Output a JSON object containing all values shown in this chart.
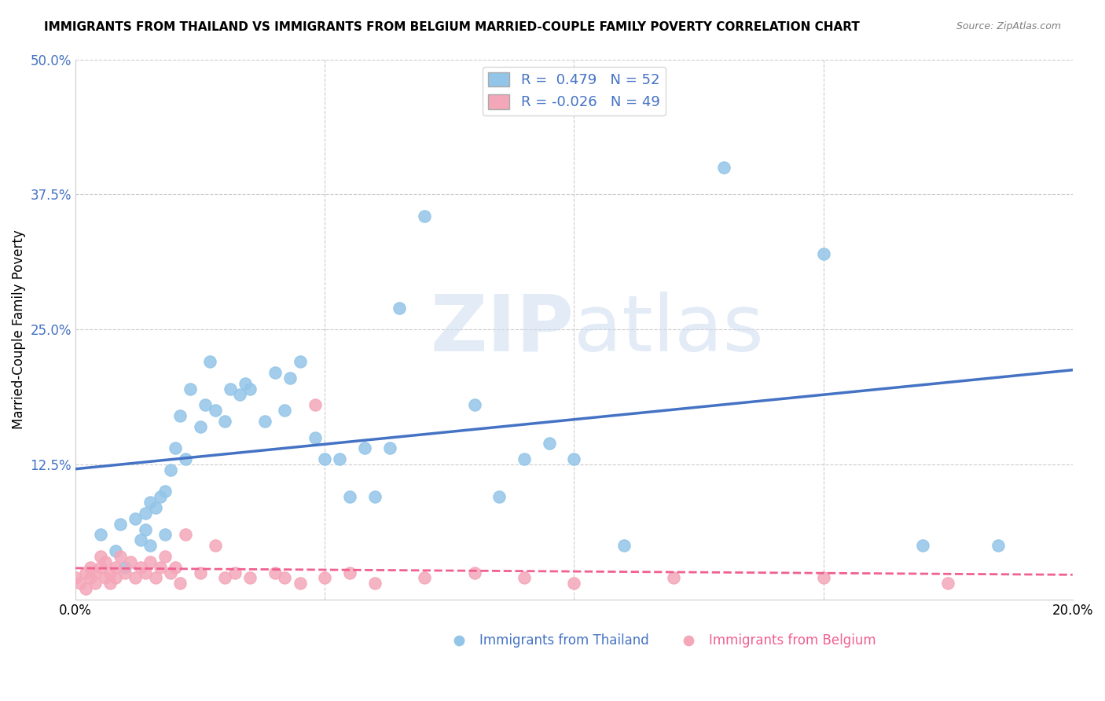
{
  "title": "IMMIGRANTS FROM THAILAND VS IMMIGRANTS FROM BELGIUM MARRIED-COUPLE FAMILY POVERTY CORRELATION CHART",
  "source": "Source: ZipAtlas.com",
  "xlabel": "",
  "ylabel": "Married-Couple Family Poverty",
  "xlim": [
    0.0,
    0.2
  ],
  "ylim": [
    0.0,
    0.5
  ],
  "xticks": [
    0.0,
    0.05,
    0.1,
    0.15,
    0.2
  ],
  "yticks": [
    0.0,
    0.125,
    0.25,
    0.375,
    0.5
  ],
  "thailand_R": 0.479,
  "thailand_N": 52,
  "belgium_R": -0.026,
  "belgium_N": 49,
  "thailand_color": "#93c5e8",
  "belgium_color": "#f4a7b9",
  "thailand_line_color": "#4472c4",
  "belgium_line_color": "#f06090",
  "legend_text_color": "#4472c4",
  "watermark_zip": "ZIP",
  "watermark_atlas": "atlas",
  "background_color": "#ffffff",
  "grid_color": "#cccccc",
  "thailand_x": [
    0.005,
    0.008,
    0.009,
    0.01,
    0.012,
    0.013,
    0.014,
    0.014,
    0.015,
    0.015,
    0.016,
    0.017,
    0.018,
    0.018,
    0.019,
    0.02,
    0.021,
    0.022,
    0.023,
    0.025,
    0.026,
    0.027,
    0.028,
    0.03,
    0.031,
    0.033,
    0.034,
    0.035,
    0.038,
    0.04,
    0.042,
    0.043,
    0.045,
    0.048,
    0.05,
    0.053,
    0.055,
    0.058,
    0.06,
    0.063,
    0.065,
    0.07,
    0.08,
    0.085,
    0.09,
    0.095,
    0.1,
    0.11,
    0.13,
    0.15,
    0.17,
    0.185
  ],
  "thailand_y": [
    0.06,
    0.045,
    0.07,
    0.03,
    0.075,
    0.055,
    0.08,
    0.065,
    0.09,
    0.05,
    0.085,
    0.095,
    0.1,
    0.06,
    0.12,
    0.14,
    0.17,
    0.13,
    0.195,
    0.16,
    0.18,
    0.22,
    0.175,
    0.165,
    0.195,
    0.19,
    0.2,
    0.195,
    0.165,
    0.21,
    0.175,
    0.205,
    0.22,
    0.15,
    0.13,
    0.13,
    0.095,
    0.14,
    0.095,
    0.14,
    0.27,
    0.355,
    0.18,
    0.095,
    0.13,
    0.145,
    0.13,
    0.05,
    0.4,
    0.32,
    0.05,
    0.05
  ],
  "belgium_x": [
    0.0,
    0.001,
    0.002,
    0.002,
    0.003,
    0.003,
    0.004,
    0.004,
    0.005,
    0.005,
    0.006,
    0.006,
    0.007,
    0.007,
    0.008,
    0.008,
    0.009,
    0.01,
    0.011,
    0.012,
    0.013,
    0.014,
    0.015,
    0.016,
    0.017,
    0.018,
    0.019,
    0.02,
    0.021,
    0.022,
    0.025,
    0.028,
    0.03,
    0.032,
    0.035,
    0.04,
    0.042,
    0.045,
    0.048,
    0.05,
    0.055,
    0.06,
    0.07,
    0.08,
    0.09,
    0.1,
    0.12,
    0.15,
    0.175
  ],
  "belgium_y": [
    0.02,
    0.015,
    0.025,
    0.01,
    0.03,
    0.02,
    0.025,
    0.015,
    0.03,
    0.04,
    0.02,
    0.035,
    0.025,
    0.015,
    0.03,
    0.02,
    0.04,
    0.025,
    0.035,
    0.02,
    0.03,
    0.025,
    0.035,
    0.02,
    0.03,
    0.04,
    0.025,
    0.03,
    0.015,
    0.06,
    0.025,
    0.05,
    0.02,
    0.025,
    0.02,
    0.025,
    0.02,
    0.015,
    0.18,
    0.02,
    0.025,
    0.015,
    0.02,
    0.025,
    0.02,
    0.015,
    0.02,
    0.02,
    0.015
  ]
}
